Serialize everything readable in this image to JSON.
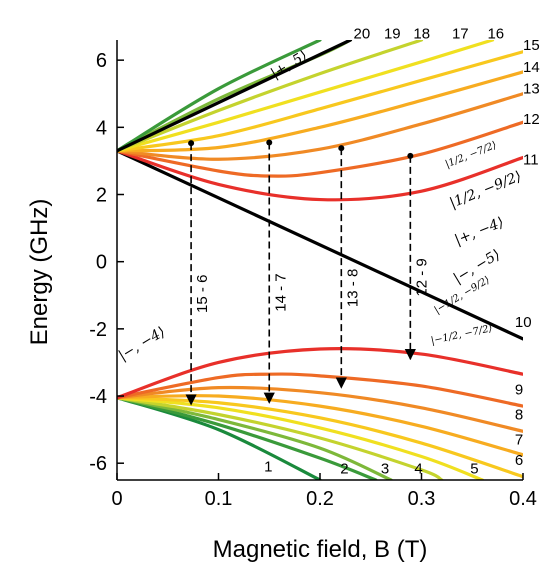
{
  "chart_data": {
    "type": "line",
    "xlabel": "Magnetic field, B (T)",
    "ylabel": "Energy (GHz)",
    "xlim": [
      0,
      0.4
    ],
    "ylim": [
      -6.5,
      6.6
    ],
    "xticks": [
      "0",
      "0.1",
      "0.2",
      "0.3",
      "0.4"
    ],
    "yticks": [
      "-6",
      "-4",
      "-2",
      "0",
      "2",
      "4",
      "6"
    ],
    "grid": false,
    "series": [
      {
        "name": "1",
        "color": "#1a8a3c",
        "points": [
          [
            0,
            -4.05
          ],
          [
            0.1,
            -5.0
          ],
          [
            0.2,
            -6.5
          ]
        ]
      },
      {
        "name": "2",
        "color": "#3a9a3a",
        "points": [
          [
            0,
            -4.05
          ],
          [
            0.1,
            -4.85
          ],
          [
            0.2,
            -5.85
          ],
          [
            0.255,
            -6.5
          ]
        ]
      },
      {
        "name": "3",
        "color": "#7db83a",
        "points": [
          [
            0,
            -4.05
          ],
          [
            0.1,
            -4.7
          ],
          [
            0.2,
            -5.55
          ],
          [
            0.27,
            -6.5
          ]
        ]
      },
      {
        "name": "4",
        "color": "#c4d32e",
        "points": [
          [
            0,
            -4.05
          ],
          [
            0.1,
            -4.55
          ],
          [
            0.2,
            -5.25
          ],
          [
            0.3,
            -6.2
          ],
          [
            0.32,
            -6.5
          ]
        ]
      },
      {
        "name": "5",
        "color": "#f0e020",
        "points": [
          [
            0,
            -4.05
          ],
          [
            0.1,
            -4.35
          ],
          [
            0.2,
            -4.95
          ],
          [
            0.3,
            -5.8
          ],
          [
            0.36,
            -6.5
          ]
        ]
      },
      {
        "name": "6",
        "color": "#f8c81e",
        "points": [
          [
            0,
            -4.05
          ],
          [
            0.1,
            -4.2
          ],
          [
            0.2,
            -4.65
          ],
          [
            0.3,
            -5.4
          ],
          [
            0.4,
            -6.4
          ]
        ]
      },
      {
        "name": "7",
        "color": "#f7ac20",
        "points": [
          [
            0,
            -4.05
          ],
          [
            0.1,
            -4.0
          ],
          [
            0.2,
            -4.3
          ],
          [
            0.3,
            -4.9
          ],
          [
            0.4,
            -5.75
          ]
        ]
      },
      {
        "name": "8",
        "color": "#f08a25",
        "points": [
          [
            0,
            -4.05
          ],
          [
            0.1,
            -3.75
          ],
          [
            0.2,
            -3.9
          ],
          [
            0.3,
            -4.35
          ],
          [
            0.4,
            -5.05
          ]
        ]
      },
      {
        "name": "9",
        "color": "#ee6a25",
        "points": [
          [
            0,
            -4.05
          ],
          [
            0.1,
            -3.45
          ],
          [
            0.15,
            -3.35
          ],
          [
            0.2,
            -3.4
          ],
          [
            0.3,
            -3.7
          ],
          [
            0.4,
            -4.3
          ]
        ]
      },
      {
        "name": "10",
        "color": "#e8302a",
        "points": [
          [
            0,
            -4.05
          ],
          [
            0.1,
            -3.0
          ],
          [
            0.2,
            -2.6
          ],
          [
            0.3,
            -2.75
          ],
          [
            0.4,
            -3.35
          ]
        ]
      },
      {
        "name": "10",
        "color": "#000000",
        "points": [
          [
            0,
            3.3
          ],
          [
            0.4,
            -2.3
          ]
        ]
      },
      {
        "name": "11",
        "color": "#e8302a",
        "points": [
          [
            0,
            3.3
          ],
          [
            0.1,
            2.3
          ],
          [
            0.2,
            1.85
          ],
          [
            0.3,
            2.1
          ],
          [
            0.4,
            3.1
          ]
        ]
      },
      {
        "name": "12",
        "color": "#ee6a25",
        "points": [
          [
            0,
            3.3
          ],
          [
            0.1,
            2.7
          ],
          [
            0.15,
            2.55
          ],
          [
            0.2,
            2.65
          ],
          [
            0.3,
            3.2
          ],
          [
            0.4,
            4.15
          ]
        ]
      },
      {
        "name": "13",
        "color": "#f08a25",
        "points": [
          [
            0,
            3.3
          ],
          [
            0.1,
            3.05
          ],
          [
            0.2,
            3.35
          ],
          [
            0.3,
            4.1
          ],
          [
            0.4,
            5.0
          ]
        ]
      },
      {
        "name": "14",
        "color": "#f7ac20",
        "points": [
          [
            0,
            3.3
          ],
          [
            0.1,
            3.4
          ],
          [
            0.2,
            4.0
          ],
          [
            0.3,
            4.8
          ],
          [
            0.4,
            5.65
          ]
        ]
      },
      {
        "name": "15",
        "color": "#f8c81e",
        "points": [
          [
            0,
            3.3
          ],
          [
            0.1,
            3.75
          ],
          [
            0.2,
            4.55
          ],
          [
            0.3,
            5.4
          ],
          [
            0.4,
            6.25
          ]
        ]
      },
      {
        "name": "16",
        "color": "#f0e020",
        "points": [
          [
            0,
            3.3
          ],
          [
            0.1,
            4.15
          ],
          [
            0.2,
            5.05
          ],
          [
            0.3,
            5.95
          ],
          [
            0.37,
            6.6
          ]
        ]
      },
      {
        "name": "17",
        "color": "#c4d32e",
        "points": [
          [
            0,
            3.3
          ],
          [
            0.1,
            4.5
          ],
          [
            0.2,
            5.6
          ],
          [
            0.3,
            6.6
          ]
        ]
      },
      {
        "name": "18",
        "color": "#7db83a",
        "points": [
          [
            0,
            3.3
          ],
          [
            0.1,
            4.85
          ],
          [
            0.2,
            6.15
          ],
          [
            0.23,
            6.6
          ]
        ]
      },
      {
        "name": "19",
        "color": "#3a9a3a",
        "points": [
          [
            0,
            3.3
          ],
          [
            0.1,
            5.15
          ],
          [
            0.2,
            6.6
          ]
        ]
      },
      {
        "name": "20",
        "color": "#000000",
        "points": [
          [
            0,
            3.3
          ],
          [
            0.23,
            6.6
          ]
        ]
      }
    ],
    "level_labels": [
      {
        "text": "1",
        "x": 0.145,
        "y": -6.25
      },
      {
        "text": "2",
        "x": 0.22,
        "y": -6.3
      },
      {
        "text": "3",
        "x": 0.26,
        "y": -6.3
      },
      {
        "text": "4",
        "x": 0.293,
        "y": -6.3
      },
      {
        "text": "5",
        "x": 0.348,
        "y": -6.3
      },
      {
        "text": "6",
        "x": 0.392,
        "y": -6.05
      },
      {
        "text": "7",
        "x": 0.392,
        "y": -5.45
      },
      {
        "text": "8",
        "x": 0.392,
        "y": -4.7
      },
      {
        "text": "9",
        "x": 0.392,
        "y": -3.95
      },
      {
        "text": "10",
        "x": 0.392,
        "y": -1.95
      },
      {
        "text": "11",
        "x": 0.4,
        "y": 2.9
      },
      {
        "text": "12",
        "x": 0.4,
        "y": 4.1
      },
      {
        "text": "13",
        "x": 0.4,
        "y": 5.0
      },
      {
        "text": "14",
        "x": 0.4,
        "y": 5.65
      },
      {
        "text": "15",
        "x": 0.4,
        "y": 6.3
      },
      {
        "text": "16",
        "x": 0.365,
        "y": 6.65
      },
      {
        "text": "17",
        "x": 0.33,
        "y": 6.65
      },
      {
        "text": "18",
        "x": 0.292,
        "y": 6.65
      },
      {
        "text": "19",
        "x": 0.263,
        "y": 6.65
      },
      {
        "text": "20",
        "x": 0.233,
        "y": 6.65
      }
    ],
    "state_labels": [
      {
        "text": "|+, 5⟩",
        "x": 0.155,
        "y": 5.45,
        "rotate": -31,
        "size": "normal"
      },
      {
        "text": "|1/2, −7/2⟩",
        "x": 0.325,
        "y": 2.8,
        "rotate": -22,
        "size": "small"
      },
      {
        "text": "|1/2, −9/2⟩",
        "x": 0.33,
        "y": 1.6,
        "rotate": -22,
        "size": "normal"
      },
      {
        "text": "|+, −4⟩",
        "x": 0.335,
        "y": 0.5,
        "rotate": -22,
        "size": "normal"
      },
      {
        "text": "|−, −5⟩",
        "x": 0.335,
        "y": -0.65,
        "rotate": -31,
        "size": "normal"
      },
      {
        "text": "|−1/2, −9/2⟩",
        "x": 0.315,
        "y": -1.55,
        "rotate": -31,
        "size": "small"
      },
      {
        "text": "|−1/2, −7/2⟩",
        "x": 0.31,
        "y": -2.45,
        "rotate": -12,
        "size": "small"
      },
      {
        "text": "|−, −4⟩",
        "x": 0.005,
        "y": -2.95,
        "rotate": -31,
        "size": "normal"
      }
    ],
    "transitions": [
      {
        "label": "15 - 6",
        "x": 0.073,
        "y_from": 3.53,
        "y_to": -4.25
      },
      {
        "label": "14 - 7",
        "x": 0.15,
        "y_from": 3.55,
        "y_to": -4.2
      },
      {
        "label": "13 - 8",
        "x": 0.221,
        "y_from": 3.38,
        "y_to": -3.75
      },
      {
        "label": "12 - 9",
        "x": 0.289,
        "y_from": 3.15,
        "y_to": -2.9
      }
    ]
  }
}
